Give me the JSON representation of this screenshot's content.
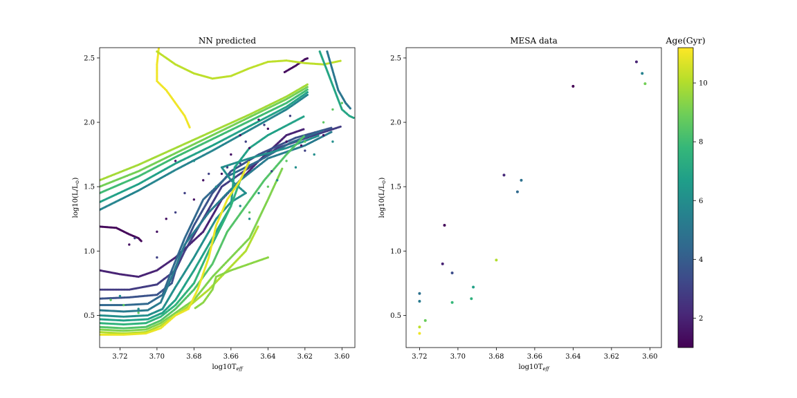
{
  "chart_data": [
    {
      "type": "line",
      "title": "NN predicted",
      "xlabel": "log10T",
      "xlabel_sub": "eff",
      "ylabel": "log10(L/L",
      "ylabel_sub": "⊙",
      "ylabel_end": ")",
      "x_inverted": true,
      "xlim": [
        3.731,
        3.593
      ],
      "ylim": [
        0.25,
        2.58
      ],
      "xticks": [
        3.72,
        3.7,
        3.68,
        3.66,
        3.64,
        3.62,
        3.6
      ],
      "xtick_labels": [
        "3.72",
        "3.70",
        "3.68",
        "3.66",
        "3.64",
        "3.62",
        "3.60"
      ],
      "yticks": [
        0.5,
        1.0,
        1.5,
        2.0,
        2.5
      ],
      "ytick_labels": [
        "0.5",
        "1.0",
        "1.5",
        "2.0",
        "2.5"
      ],
      "color_by": "age_gyr",
      "series": [
        {
          "age": 1.2,
          "x": [
            3.731,
            3.722,
            3.715,
            3.71,
            3.708
          ],
          "y": [
            1.19,
            1.18,
            1.13,
            1.1,
            1.07
          ]
        },
        {
          "age": 1.3,
          "x": [
            3.631,
            3.625,
            3.62,
            3.618
          ],
          "y": [
            2.39,
            2.44,
            2.49,
            2.5
          ]
        },
        {
          "age": 2.0,
          "x": [
            3.731,
            3.72,
            3.71,
            3.7,
            3.69,
            3.675,
            3.665,
            3.655,
            3.645,
            3.63,
            3.62
          ],
          "y": [
            0.85,
            0.82,
            0.8,
            0.85,
            0.95,
            1.15,
            1.4,
            1.55,
            1.7,
            1.9,
            1.95
          ]
        },
        {
          "age": 2.8,
          "x": [
            3.731,
            3.715,
            3.7,
            3.69,
            3.685,
            3.675,
            3.665,
            3.65,
            3.635,
            3.615,
            3.6
          ],
          "y": [
            0.7,
            0.7,
            0.74,
            0.85,
            1.0,
            1.25,
            1.5,
            1.65,
            1.8,
            1.9,
            1.97
          ]
        },
        {
          "age": 3.6,
          "x": [
            3.731,
            3.715,
            3.7,
            3.692,
            3.688,
            3.68,
            3.67,
            3.66,
            3.645,
            3.625,
            3.605
          ],
          "y": [
            0.63,
            0.64,
            0.66,
            0.75,
            0.95,
            1.2,
            1.45,
            1.62,
            1.75,
            1.88,
            1.96
          ]
        },
        {
          "age": 4.4,
          "x": [
            3.731,
            3.718,
            3.705,
            3.697,
            3.692,
            3.685,
            3.675,
            3.662,
            3.645,
            3.628,
            3.61
          ],
          "y": [
            0.58,
            0.58,
            0.59,
            0.66,
            0.85,
            1.1,
            1.4,
            1.58,
            1.7,
            1.84,
            1.94
          ]
        },
        {
          "age": 5.2,
          "x": [
            3.731,
            3.718,
            3.705,
            3.698,
            3.692,
            3.685,
            3.672,
            3.662,
            3.655,
            3.64,
            3.62,
            3.605
          ],
          "y": [
            0.54,
            0.53,
            0.54,
            0.6,
            0.8,
            1.05,
            1.3,
            1.45,
            1.55,
            1.72,
            1.82,
            1.93
          ]
        },
        {
          "age": 6.0,
          "x": [
            3.731,
            3.718,
            3.705,
            3.697,
            3.69,
            3.68,
            3.668,
            3.66,
            3.652,
            3.66,
            3.665,
            3.65,
            3.63,
            3.612
          ],
          "y": [
            0.5,
            0.49,
            0.5,
            0.55,
            0.72,
            0.95,
            1.25,
            1.38,
            1.45,
            1.55,
            1.65,
            1.72,
            1.8,
            1.9
          ]
        },
        {
          "age": 6.8,
          "x": [
            3.731,
            3.718,
            3.705,
            3.697,
            3.69,
            3.68,
            3.668,
            3.66,
            3.658,
            3.65,
            3.64,
            3.62
          ],
          "y": [
            0.47,
            0.46,
            0.47,
            0.52,
            0.62,
            0.85,
            1.15,
            1.35,
            1.65,
            1.8,
            1.9,
            2.05
          ]
        },
        {
          "age": 7.6,
          "x": [
            3.731,
            3.718,
            3.706,
            3.698,
            3.69,
            3.68,
            3.672,
            3.665,
            3.66,
            3.655,
            3.65
          ],
          "y": [
            0.44,
            0.43,
            0.44,
            0.49,
            0.58,
            0.75,
            1.0,
            1.2,
            1.35,
            1.55,
            1.7
          ]
        },
        {
          "age": 8.4,
          "x": [
            3.731,
            3.718,
            3.706,
            3.698,
            3.69,
            3.68,
            3.67,
            3.662,
            3.652,
            3.642,
            3.63,
            3.62
          ],
          "y": [
            0.41,
            0.4,
            0.41,
            0.46,
            0.55,
            0.7,
            0.9,
            1.15,
            1.35,
            1.55,
            1.75,
            1.9
          ]
        },
        {
          "age": 9.2,
          "x": [
            3.731,
            3.718,
            3.706,
            3.698,
            3.69,
            3.68,
            3.67,
            3.66,
            3.65,
            3.64,
            3.632
          ],
          "y": [
            0.39,
            0.38,
            0.39,
            0.44,
            0.52,
            0.62,
            0.8,
            0.95,
            1.1,
            1.4,
            1.65
          ]
        },
        {
          "age": 10.0,
          "x": [
            3.731,
            3.718,
            3.706,
            3.698,
            3.69,
            3.682,
            3.672,
            3.662,
            3.652,
            3.645
          ],
          "y": [
            0.37,
            0.36,
            0.37,
            0.42,
            0.5,
            0.58,
            0.7,
            0.85,
            1.0,
            1.2
          ]
        },
        {
          "age": 10.9,
          "x": [
            3.731,
            3.718,
            3.706,
            3.698,
            3.69,
            3.683,
            3.678,
            3.672,
            3.668,
            3.662,
            3.655,
            3.65
          ],
          "y": [
            0.35,
            0.35,
            0.36,
            0.4,
            0.5,
            0.55,
            0.7,
            0.95,
            1.2,
            1.4,
            1.55,
            1.7
          ]
        },
        {
          "age": 11.0,
          "x": [
            3.699,
            3.7,
            3.7,
            3.695,
            3.69,
            3.685,
            3.682
          ],
          "y": [
            2.58,
            2.45,
            2.32,
            2.25,
            2.15,
            2.05,
            1.95
          ]
        },
        {
          "age": 9.8,
          "x": [
            3.731,
            3.71,
            3.69,
            3.67,
            3.65,
            3.63,
            3.618
          ],
          "y": [
            1.55,
            1.67,
            1.8,
            1.93,
            2.06,
            2.2,
            2.3
          ]
        },
        {
          "age": 9.0,
          "x": [
            3.731,
            3.71,
            3.69,
            3.67,
            3.65,
            3.63,
            3.618
          ],
          "y": [
            1.5,
            1.62,
            1.76,
            1.9,
            2.04,
            2.18,
            2.28
          ]
        },
        {
          "age": 8.0,
          "x": [
            3.731,
            3.71,
            3.69,
            3.67,
            3.65,
            3.63,
            3.618
          ],
          "y": [
            1.45,
            1.58,
            1.73,
            1.87,
            2.01,
            2.15,
            2.26
          ]
        },
        {
          "age": 6.8,
          "x": [
            3.731,
            3.71,
            3.69,
            3.67,
            3.65,
            3.63,
            3.618
          ],
          "y": [
            1.38,
            1.52,
            1.68,
            1.82,
            1.97,
            2.12,
            2.24
          ]
        },
        {
          "age": 5.6,
          "x": [
            3.731,
            3.71,
            3.69,
            3.67,
            3.65,
            3.63,
            3.618
          ],
          "y": [
            1.32,
            1.47,
            1.63,
            1.78,
            1.94,
            2.1,
            2.22
          ]
        },
        {
          "age": 10.2,
          "x": [
            3.7,
            3.69,
            3.68,
            3.67,
            3.66,
            3.65,
            3.64,
            3.63,
            3.62,
            3.61,
            3.6
          ],
          "y": [
            2.55,
            2.45,
            2.38,
            2.34,
            2.36,
            2.42,
            2.47,
            2.48,
            2.46,
            2.45,
            2.48
          ]
        },
        {
          "age": 7.0,
          "x": [
            3.612,
            3.608,
            3.604,
            3.6,
            3.596,
            3.593
          ],
          "y": [
            2.55,
            2.4,
            2.25,
            2.1,
            2.05,
            2.03
          ]
        },
        {
          "age": 5.0,
          "x": [
            3.608,
            3.605,
            3.602,
            3.598,
            3.595
          ],
          "y": [
            2.55,
            2.4,
            2.25,
            2.15,
            2.1
          ]
        },
        {
          "age": 9.4,
          "x": [
            3.64,
            3.65,
            3.66,
            3.668,
            3.67,
            3.675,
            3.68
          ],
          "y": [
            0.95,
            0.9,
            0.85,
            0.8,
            0.7,
            0.6,
            0.55
          ]
        }
      ],
      "scatter_groups": [
        {
          "age": 1.5,
          "points": [
            [
              3.69,
              1.7
            ],
            [
              3.675,
              1.55
            ],
            [
              3.665,
              1.6
            ],
            [
              3.66,
              1.75
            ],
            [
              3.65,
              1.8
            ],
            [
              3.64,
              1.95
            ],
            [
              3.63,
              1.85
            ],
            [
              3.61,
              1.9
            ],
            [
              3.7,
              1.15
            ],
            [
              3.715,
              1.05
            ],
            [
              3.695,
              1.25
            ],
            [
              3.68,
              1.4
            ],
            [
              3.655,
              1.9
            ],
            [
              3.622,
              1.82
            ],
            [
              3.645,
              2.02
            ]
          ]
        },
        {
          "age": 3.0,
          "points": [
            [
              3.685,
              1.45
            ],
            [
              3.672,
              1.6
            ],
            [
              3.662,
              1.65
            ],
            [
              3.652,
              1.85
            ],
            [
              3.642,
              1.98
            ],
            [
              3.628,
              2.05
            ],
            [
              3.7,
              0.95
            ],
            [
              3.712,
              1.1
            ],
            [
              3.69,
              1.3
            ],
            [
              3.62,
              1.78
            ],
            [
              3.638,
              1.62
            ],
            [
              3.655,
              1.68
            ]
          ]
        },
        {
          "age": 6.0,
          "points": [
            [
              3.68,
              1.7
            ],
            [
              3.668,
              1.5
            ],
            [
              3.655,
              1.35
            ],
            [
              3.645,
              1.45
            ],
            [
              3.635,
              1.55
            ],
            [
              3.625,
              1.65
            ],
            [
              3.615,
              1.75
            ],
            [
              3.605,
              1.85
            ],
            [
              3.72,
              0.65
            ],
            [
              3.71,
              0.55
            ],
            [
              3.65,
              1.25
            ]
          ]
        },
        {
          "age": 8.6,
          "points": [
            [
              3.725,
              0.62
            ],
            [
              3.718,
              0.58
            ],
            [
              3.71,
              0.52
            ],
            [
              3.65,
              1.3
            ],
            [
              3.64,
              1.5
            ],
            [
              3.63,
              1.7
            ],
            [
              3.62,
              1.85
            ],
            [
              3.61,
              2.0
            ],
            [
              3.605,
              2.1
            ],
            [
              3.6,
              2.15
            ]
          ]
        }
      ]
    },
    {
      "type": "scatter",
      "title": "MESA data",
      "xlabel": "log10T",
      "xlabel_sub": "eff",
      "ylabel": "log10(L/L",
      "ylabel_sub": "⊙",
      "ylabel_end": ")",
      "x_inverted": true,
      "xlim": [
        3.727,
        3.594
      ],
      "ylim": [
        0.25,
        2.58
      ],
      "xticks": [
        3.72,
        3.7,
        3.68,
        3.66,
        3.64,
        3.62,
        3.6
      ],
      "xtick_labels": [
        "3.72",
        "3.70",
        "3.68",
        "3.66",
        "3.64",
        "3.62",
        "3.60"
      ],
      "yticks": [
        0.5,
        1.0,
        1.5,
        2.0,
        2.5
      ],
      "ytick_labels": [
        "0.5",
        "1.0",
        "1.5",
        "2.0",
        "2.5"
      ],
      "color_by": "age_gyr",
      "points": [
        {
          "x": 3.607,
          "y": 2.47,
          "age": 2.0
        },
        {
          "x": 3.604,
          "y": 2.38,
          "age": 5.5
        },
        {
          "x": 3.6025,
          "y": 2.3,
          "age": 9.0
        },
        {
          "x": 3.64,
          "y": 2.28,
          "age": 1.0
        },
        {
          "x": 3.676,
          "y": 1.59,
          "age": 2.2
        },
        {
          "x": 3.667,
          "y": 1.55,
          "age": 4.8
        },
        {
          "x": 3.669,
          "y": 1.46,
          "age": 4.5
        },
        {
          "x": 3.707,
          "y": 1.2,
          "age": 1.2
        },
        {
          "x": 3.708,
          "y": 0.9,
          "age": 2.0
        },
        {
          "x": 3.703,
          "y": 0.83,
          "age": 3.4
        },
        {
          "x": 3.68,
          "y": 0.93,
          "age": 10.0
        },
        {
          "x": 3.692,
          "y": 0.72,
          "age": 6.8
        },
        {
          "x": 3.693,
          "y": 0.63,
          "age": 7.5
        },
        {
          "x": 3.703,
          "y": 0.6,
          "age": 7.8
        },
        {
          "x": 3.72,
          "y": 0.67,
          "age": 4.8
        },
        {
          "x": 3.72,
          "y": 0.61,
          "age": 5.2
        },
        {
          "x": 3.717,
          "y": 0.46,
          "age": 8.8
        },
        {
          "x": 3.72,
          "y": 0.41,
          "age": 10.2
        },
        {
          "x": 3.72,
          "y": 0.36,
          "age": 11.0
        }
      ]
    }
  ],
  "colorbar": {
    "title": "Age(Gyr)",
    "colormap": "viridis",
    "vmin": 1.0,
    "vmax": 11.2,
    "ticks": [
      2,
      4,
      6,
      8,
      10
    ],
    "tick_labels": [
      "2",
      "4",
      "6",
      "8",
      "10"
    ],
    "stops": [
      "#440154",
      "#482878",
      "#3e4989",
      "#31688e",
      "#26828e",
      "#1f9e89",
      "#35b779",
      "#6ece58",
      "#b5de2b",
      "#fde725"
    ]
  }
}
